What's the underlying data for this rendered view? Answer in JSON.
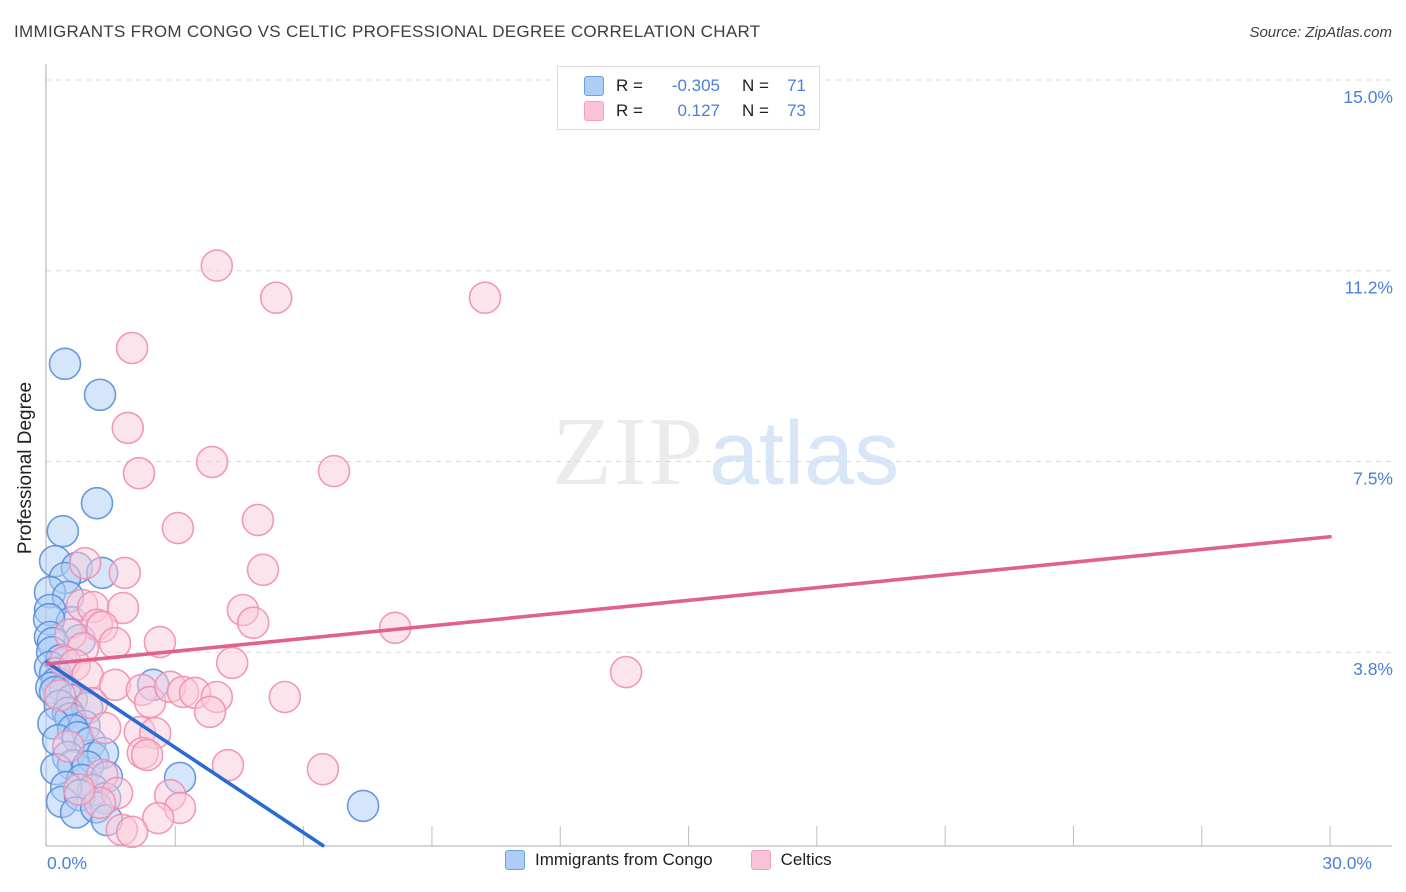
{
  "header": {
    "title": "IMMIGRANTS FROM CONGO VS CELTIC PROFESSIONAL DEGREE CORRELATION CHART",
    "source": "Source: ZipAtlas.com"
  },
  "watermark": {
    "part1": "ZIP",
    "part2": "atlas"
  },
  "stats_legend": {
    "rows": [
      {
        "r_label": "R =",
        "r_value": "-0.305",
        "n_label": "N =",
        "n_value": "71"
      },
      {
        "r_label": "R =",
        "r_value": "0.127",
        "n_label": "N =",
        "n_value": "73"
      }
    ]
  },
  "axes": {
    "y_title": "Professional Degree",
    "x_min_label": "0.0%",
    "x_max_label": "30.0%"
  },
  "series_legend": [
    {
      "label": "Immigrants from Congo"
    },
    {
      "label": "Celtics"
    }
  ],
  "chart_data": {
    "type": "scatter",
    "xlim": [
      0,
      30
    ],
    "ylim": [
      0,
      15
    ],
    "grid": "horizontal-dashed",
    "label_color": "#4a80d9",
    "x_minor_ticks": [
      3,
      6,
      9,
      12,
      15,
      18,
      21,
      24,
      27,
      30
    ],
    "y_gridlines": [
      {
        "value": 15.0,
        "label": "15.0%"
      },
      {
        "value": 11.25,
        "label": "11.2%"
      },
      {
        "value": 7.5,
        "label": "7.5%"
      },
      {
        "value": 3.75,
        "label": "3.8%"
      }
    ],
    "series": [
      {
        "name": "Immigrants from Congo",
        "R": -0.305,
        "N": 71,
        "point_fill": "#aecdf5",
        "point_stroke": "#5b8fd9",
        "line_color": "#2a6ad3",
        "trend": {
          "x1": 0,
          "y1": 3.55,
          "x2": 6.45,
          "y2": -0.05
        },
        "points": [
          [
            0.42,
            9.42
          ],
          [
            1.24,
            8.81
          ],
          [
            1.17,
            6.68
          ],
          [
            0.37,
            6.13
          ],
          [
            0.19,
            5.54
          ],
          [
            0.7,
            5.41
          ],
          [
            1.29,
            5.31
          ],
          [
            0.42,
            5.21
          ],
          [
            0.07,
            4.93
          ],
          [
            0.49,
            4.84
          ],
          [
            0.07,
            4.58
          ],
          [
            0.58,
            4.34
          ],
          [
            0.05,
            4.4
          ],
          [
            0.07,
            4.05
          ],
          [
            0.77,
            3.99
          ],
          [
            0.14,
            3.93
          ],
          [
            0.12,
            3.75
          ],
          [
            0.33,
            3.6
          ],
          [
            0.07,
            3.46
          ],
          [
            0.19,
            3.34
          ],
          [
            0.23,
            3.15
          ],
          [
            0.1,
            3.05
          ],
          [
            0.42,
            3.01
          ],
          [
            0.19,
            2.97
          ],
          [
            0.58,
            2.81
          ],
          [
            0.3,
            2.7
          ],
          [
            0.94,
            2.65
          ],
          [
            0.49,
            2.56
          ],
          [
            0.55,
            2.45
          ],
          [
            0.15,
            2.35
          ],
          [
            0.88,
            2.3
          ],
          [
            0.61,
            2.22
          ],
          [
            2.48,
            3.11
          ],
          [
            0.26,
            2.02
          ],
          [
            0.72,
            2.08
          ],
          [
            1.01,
            1.97
          ],
          [
            0.49,
            1.69
          ],
          [
            0.61,
            1.53
          ],
          [
            1.08,
            1.67
          ],
          [
            1.31,
            1.77
          ],
          [
            0.22,
            1.45
          ],
          [
            0.95,
            1.5
          ],
          [
            0.82,
            1.24
          ],
          [
            1.4,
            1.3
          ],
          [
            1.08,
            1.04
          ],
          [
            0.45,
            1.1
          ],
          [
            0.35,
            0.81
          ],
          [
            0.77,
            0.94
          ],
          [
            1.36,
            0.88
          ],
          [
            0.68,
            0.6
          ],
          [
            1.15,
            0.7
          ],
          [
            1.4,
            0.45
          ],
          [
            3.11,
            1.28
          ],
          [
            7.39,
            0.73
          ]
        ]
      },
      {
        "name": "Celtics",
        "R": 0.127,
        "N": 73,
        "point_fill": "#fac9da",
        "point_stroke": "#ef8fb0",
        "line_color": "#e0618e",
        "trend": {
          "x1": 0,
          "y1": 3.52,
          "x2": 30,
          "y2": 6.02
        },
        "points": [
          [
            3.97,
            11.35
          ],
          [
            5.36,
            10.72
          ],
          [
            10.24,
            10.72
          ],
          [
            1.99,
            9.73
          ],
          [
            1.89,
            8.16
          ],
          [
            3.86,
            7.49
          ],
          [
            2.15,
            7.27
          ],
          [
            6.71,
            7.31
          ],
          [
            4.93,
            6.35
          ],
          [
            3.06,
            6.19
          ],
          [
            0.89,
            5.5
          ],
          [
            1.82,
            5.31
          ],
          [
            5.05,
            5.37
          ],
          [
            0.82,
            4.68
          ],
          [
            1.08,
            4.64
          ],
          [
            1.78,
            4.62
          ],
          [
            1.17,
            4.29
          ],
          [
            1.29,
            4.25
          ],
          [
            0.55,
            4.1
          ],
          [
            1.59,
            3.93
          ],
          [
            0.84,
            3.83
          ],
          [
            2.64,
            3.95
          ],
          [
            4.58,
            4.58
          ],
          [
            4.82,
            4.33
          ],
          [
            8.14,
            4.23
          ],
          [
            0.42,
            3.56
          ],
          [
            0.65,
            3.5
          ],
          [
            4.33,
            3.54
          ],
          [
            0.95,
            3.3
          ],
          [
            1.59,
            3.11
          ],
          [
            2.22,
            3.01
          ],
          [
            2.41,
            2.77
          ],
          [
            2.88,
            3.07
          ],
          [
            3.18,
            2.97
          ],
          [
            3.46,
            2.95
          ],
          [
            3.97,
            2.87
          ],
          [
            3.81,
            2.58
          ],
          [
            5.56,
            2.87
          ],
          [
            0.3,
            2.9
          ],
          [
            1.05,
            2.75
          ],
          [
            13.54,
            3.36
          ],
          [
            1.36,
            2.26
          ],
          [
            2.17,
            2.18
          ],
          [
            2.53,
            2.16
          ],
          [
            2.24,
            1.77
          ],
          [
            2.34,
            1.73
          ],
          [
            4.23,
            1.53
          ],
          [
            6.45,
            1.45
          ],
          [
            0.5,
            1.9
          ],
          [
            1.29,
            1.34
          ],
          [
            1.64,
            0.98
          ],
          [
            1.24,
            0.79
          ],
          [
            2.88,
            0.94
          ],
          [
            3.11,
            0.69
          ],
          [
            2.6,
            0.49
          ],
          [
            0.75,
            1.05
          ],
          [
            1.75,
            0.26
          ],
          [
            1.99,
            0.22
          ]
        ]
      }
    ]
  }
}
